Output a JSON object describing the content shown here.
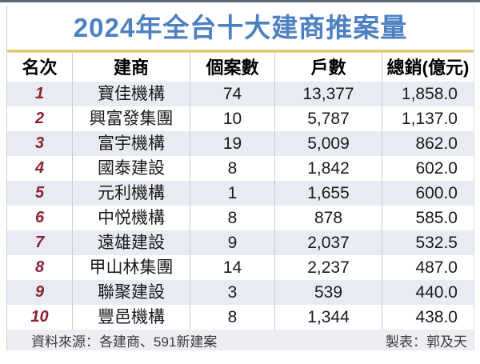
{
  "chart_data": {
    "type": "table",
    "title": "2024年全台十大建商推案量",
    "columns": [
      "名次",
      "建商",
      "個案數",
      "戶數",
      "總銷(億元)"
    ],
    "rows": [
      [
        "1",
        "寶佳機構",
        "74",
        "13,377",
        "1,858.0"
      ],
      [
        "2",
        "興富發集團",
        "10",
        "5,787",
        "1,137.0"
      ],
      [
        "3",
        "富宇機構",
        "19",
        "5,009",
        "862.0"
      ],
      [
        "4",
        "國泰建設",
        "8",
        "1,842",
        "602.0"
      ],
      [
        "5",
        "元利機構",
        "1",
        "1,655",
        "600.0"
      ],
      [
        "6",
        "中悦機構",
        "8",
        "878",
        "585.0"
      ],
      [
        "7",
        "遠雄建設",
        "9",
        "2,037",
        "532.5"
      ],
      [
        "8",
        "甲山林集團",
        "14",
        "2,237",
        "487.0"
      ],
      [
        "9",
        "聯聚建設",
        "3",
        "539",
        "440.0"
      ],
      [
        "10",
        "豐邑機構",
        "8",
        "1,344",
        "438.0"
      ]
    ]
  },
  "footer": {
    "source": "資料來源：各建商、591新建案",
    "credit": "製表：郭及天"
  },
  "colors": {
    "title_blue": "#4d80c2",
    "rank_maroon": "#8e2132",
    "row_stripe": "#e9ebf3",
    "col_sep": "#c6ccd9",
    "gold": "#d2b84a",
    "topbar": "#5c6b77",
    "card_border": "#cdd1d8",
    "cell_text": "#1a1a1a",
    "footer_bg": "#eceef4",
    "footer_text": "#3a3a3a"
  }
}
